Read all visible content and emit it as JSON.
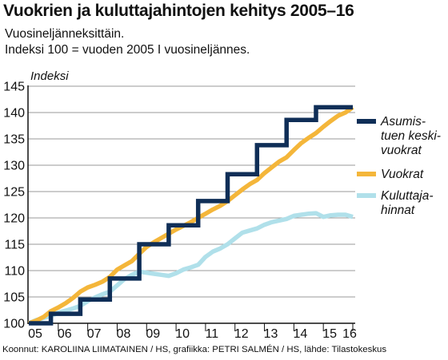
{
  "header": {
    "title": "Vuokrien ja kuluttajahintojen kehitys 2005–16",
    "subtitle_line1": "Vuosineljänneksittäin.",
    "subtitle_line2": "Indeksi 100 = vuoden 2005 I vuosineljännes."
  },
  "footer": {
    "credits": "Koonnut: KAROLIINA LIIMATAINEN / HS, grafiikka: PETRI SALMÉN / HS, lähde: Tilastokeskus"
  },
  "chart_data": {
    "type": "line",
    "title": "Vuokrien ja kuluttajahintojen kehitys 2005–16",
    "subtitle": "Vuosineljänneksittäin. Indeksi 100 = vuoden 2005 I vuosineljännes.",
    "ylabel": "Indeksi",
    "xlabel": "",
    "ylim": [
      100,
      145
    ],
    "yticks": [
      100,
      105,
      110,
      115,
      120,
      125,
      130,
      135,
      140,
      145
    ],
    "xlim": [
      2005,
      2016.25
    ],
    "xtick_labels": [
      "05",
      "06",
      "07",
      "08",
      "09",
      "10",
      "11",
      "12",
      "13",
      "14",
      "15",
      "16"
    ],
    "grid": "horizontal",
    "legend_placement": "right",
    "series": [
      {
        "name": "Asumistuen keskivuokrat",
        "legend_lines": [
          "Asumis-",
          "tuen keski-",
          "vuokrat"
        ],
        "color": "#0f2e57",
        "step": true,
        "x": [
          2005.0,
          2005.75,
          2005.75,
          2006.75,
          2006.75,
          2007.75,
          2007.75,
          2008.75,
          2008.75,
          2009.75,
          2009.75,
          2010.75,
          2010.75,
          2011.75,
          2011.75,
          2012.75,
          2012.75,
          2013.75,
          2013.75,
          2014.75,
          2014.75,
          2016.0
        ],
        "y": [
          100.0,
          100.0,
          101.8,
          101.8,
          104.5,
          104.5,
          108.5,
          108.5,
          115.0,
          115.0,
          118.6,
          118.6,
          123.2,
          123.2,
          128.3,
          128.3,
          133.8,
          133.8,
          138.6,
          138.6,
          141.0,
          141.0
        ]
      },
      {
        "name": "Vuokrat",
        "legend_lines": [
          "Vuokrat"
        ],
        "color": "#f4b63a",
        "x": [
          2005.0,
          2005.25,
          2005.5,
          2005.75,
          2006.0,
          2006.25,
          2006.5,
          2006.75,
          2007.0,
          2007.25,
          2007.5,
          2007.75,
          2008.0,
          2008.25,
          2008.5,
          2008.75,
          2009.0,
          2009.25,
          2009.5,
          2009.75,
          2010.0,
          2010.25,
          2010.5,
          2010.75,
          2011.0,
          2011.25,
          2011.5,
          2011.75,
          2012.0,
          2012.25,
          2012.5,
          2012.75,
          2013.0,
          2013.25,
          2013.5,
          2013.75,
          2014.0,
          2014.25,
          2014.5,
          2014.75,
          2015.0,
          2015.25,
          2015.5,
          2015.75,
          2016.0
        ],
        "y": [
          100.0,
          100.5,
          101.2,
          102.3,
          103.0,
          103.8,
          104.8,
          106.0,
          106.8,
          107.3,
          107.9,
          108.8,
          110.2,
          111.0,
          111.8,
          113.2,
          114.5,
          115.4,
          116.2,
          117.0,
          117.8,
          118.5,
          119.2,
          120.0,
          120.8,
          121.6,
          122.3,
          123.2,
          124.3,
          125.4,
          126.4,
          127.2,
          128.5,
          129.6,
          130.7,
          131.5,
          132.9,
          134.2,
          135.2,
          136.1,
          137.3,
          138.4,
          139.4,
          140.0,
          141.0
        ]
      },
      {
        "name": "Kuluttajahinnat",
        "legend_lines": [
          "Kuluttaja-",
          "hinnat"
        ],
        "color": "#b0e0ea",
        "x": [
          2005.0,
          2005.25,
          2005.5,
          2005.75,
          2006.0,
          2006.25,
          2006.5,
          2006.75,
          2007.0,
          2007.25,
          2007.5,
          2007.75,
          2008.0,
          2008.25,
          2008.5,
          2008.75,
          2009.0,
          2009.25,
          2009.5,
          2009.75,
          2010.0,
          2010.25,
          2010.5,
          2010.75,
          2011.0,
          2011.25,
          2011.5,
          2011.75,
          2012.0,
          2012.25,
          2012.5,
          2012.75,
          2013.0,
          2013.25,
          2013.5,
          2013.75,
          2014.0,
          2014.25,
          2014.5,
          2014.75,
          2015.0,
          2015.25,
          2015.5,
          2015.75,
          2016.0
        ],
        "y": [
          100.0,
          100.6,
          101.0,
          101.4,
          102.0,
          102.4,
          102.8,
          103.3,
          104.2,
          104.9,
          105.5,
          106.0,
          107.2,
          108.4,
          109.2,
          109.8,
          109.6,
          109.4,
          109.2,
          109.0,
          109.5,
          110.2,
          110.6,
          111.1,
          112.6,
          113.6,
          114.2,
          115.0,
          116.1,
          117.2,
          117.6,
          118.0,
          118.7,
          119.2,
          119.5,
          119.8,
          120.4,
          120.6,
          120.8,
          120.9,
          120.2,
          120.5,
          120.6,
          120.6,
          120.2
        ]
      }
    ]
  }
}
